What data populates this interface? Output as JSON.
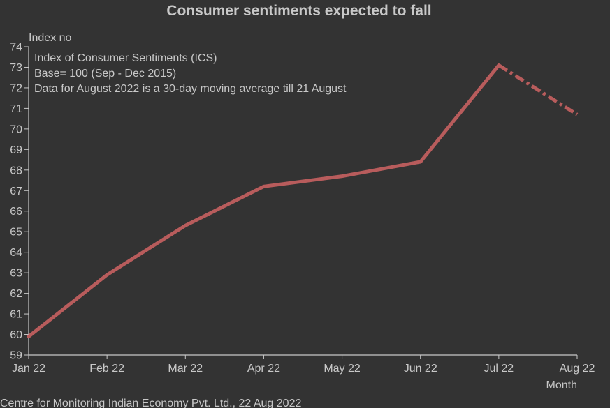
{
  "chart_data": {
    "type": "line",
    "title": "Consumer sentiments expected to fall",
    "ylabel": "Index no",
    "xlabel": "Month",
    "ylim": [
      59,
      74
    ],
    "yticks": [
      59,
      60,
      61,
      62,
      63,
      64,
      65,
      66,
      67,
      68,
      69,
      70,
      71,
      72,
      73,
      74
    ],
    "categories": [
      "Jan 22",
      "Feb 22",
      "Mar 22",
      "Apr 22",
      "May 22",
      "Jun 22",
      "Jul 22",
      "Aug 22"
    ],
    "series": [
      {
        "values": [
          59.9,
          62.9,
          65.3,
          67.2,
          67.7,
          68.4,
          73.1,
          70.7
        ],
        "color": "#b85c5c",
        "dashed_last_segment": true
      }
    ],
    "annotations": [
      "Index of Consumer Sentiments (ICS)",
      "Base= 100 (Sep - Dec 2015)",
      "Data for August 2022 is a 30-day moving average till 21 August"
    ],
    "grid": false
  },
  "source": "Centre for Monitoring Indian Economy Pvt. Ltd., 22 Aug 2022",
  "colors": {
    "background": "#333333",
    "text": "#c8c8c8",
    "axis": "#c8c8c8",
    "line": "#b85c5c"
  }
}
